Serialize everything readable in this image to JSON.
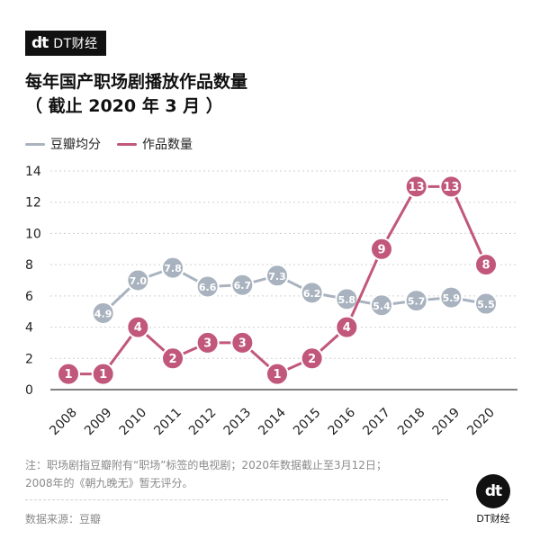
{
  "brand": {
    "mark": "dt",
    "name": "DT财经"
  },
  "title_line1": "每年国产职场剧播放作品数量",
  "title_line2": "（ 截止 2020 年 3 月 ）",
  "note_line1": "注：职场剧指豆瓣附有“职场”标签的电视剧；2020年数据截止至3月12日；",
  "note_line2": "2008年的《朝九晚无》暂无评分。",
  "source": "数据来源：豆瓣",
  "colors": {
    "douban": "#a9b3bf",
    "count": "#c1577a"
  },
  "chart_data": {
    "type": "line",
    "x": [
      "2008",
      "2009",
      "2010",
      "2011",
      "2012",
      "2013",
      "2014",
      "2015",
      "2016",
      "2017",
      "2018",
      "2019",
      "2020"
    ],
    "ylim": [
      0,
      14
    ],
    "yticks": [
      0,
      2,
      4,
      6,
      8,
      10,
      12,
      14
    ],
    "grid": true,
    "legend_position": "top-left",
    "series": [
      {
        "name": "豆瓣均分",
        "color": "#a9b3bf",
        "values": [
          null,
          4.9,
          7.0,
          7.8,
          6.6,
          6.7,
          7.3,
          6.2,
          5.8,
          5.4,
          5.7,
          5.9,
          5.5
        ],
        "labels": [
          "",
          "4.9",
          "7.0",
          "7.8",
          "6.6",
          "6.7",
          "7.3",
          "6.2",
          "5.8",
          "5.4",
          "5.7",
          "5.9",
          "5.5"
        ]
      },
      {
        "name": "作品数量",
        "color": "#c1577a",
        "values": [
          1,
          1,
          4,
          2,
          3,
          3,
          1,
          2,
          4,
          9,
          13,
          13,
          8
        ],
        "labels": [
          "1",
          "1",
          "4",
          "2",
          "3",
          "3",
          "1",
          "2",
          "4",
          "9",
          "13",
          "13",
          "8"
        ]
      }
    ]
  }
}
